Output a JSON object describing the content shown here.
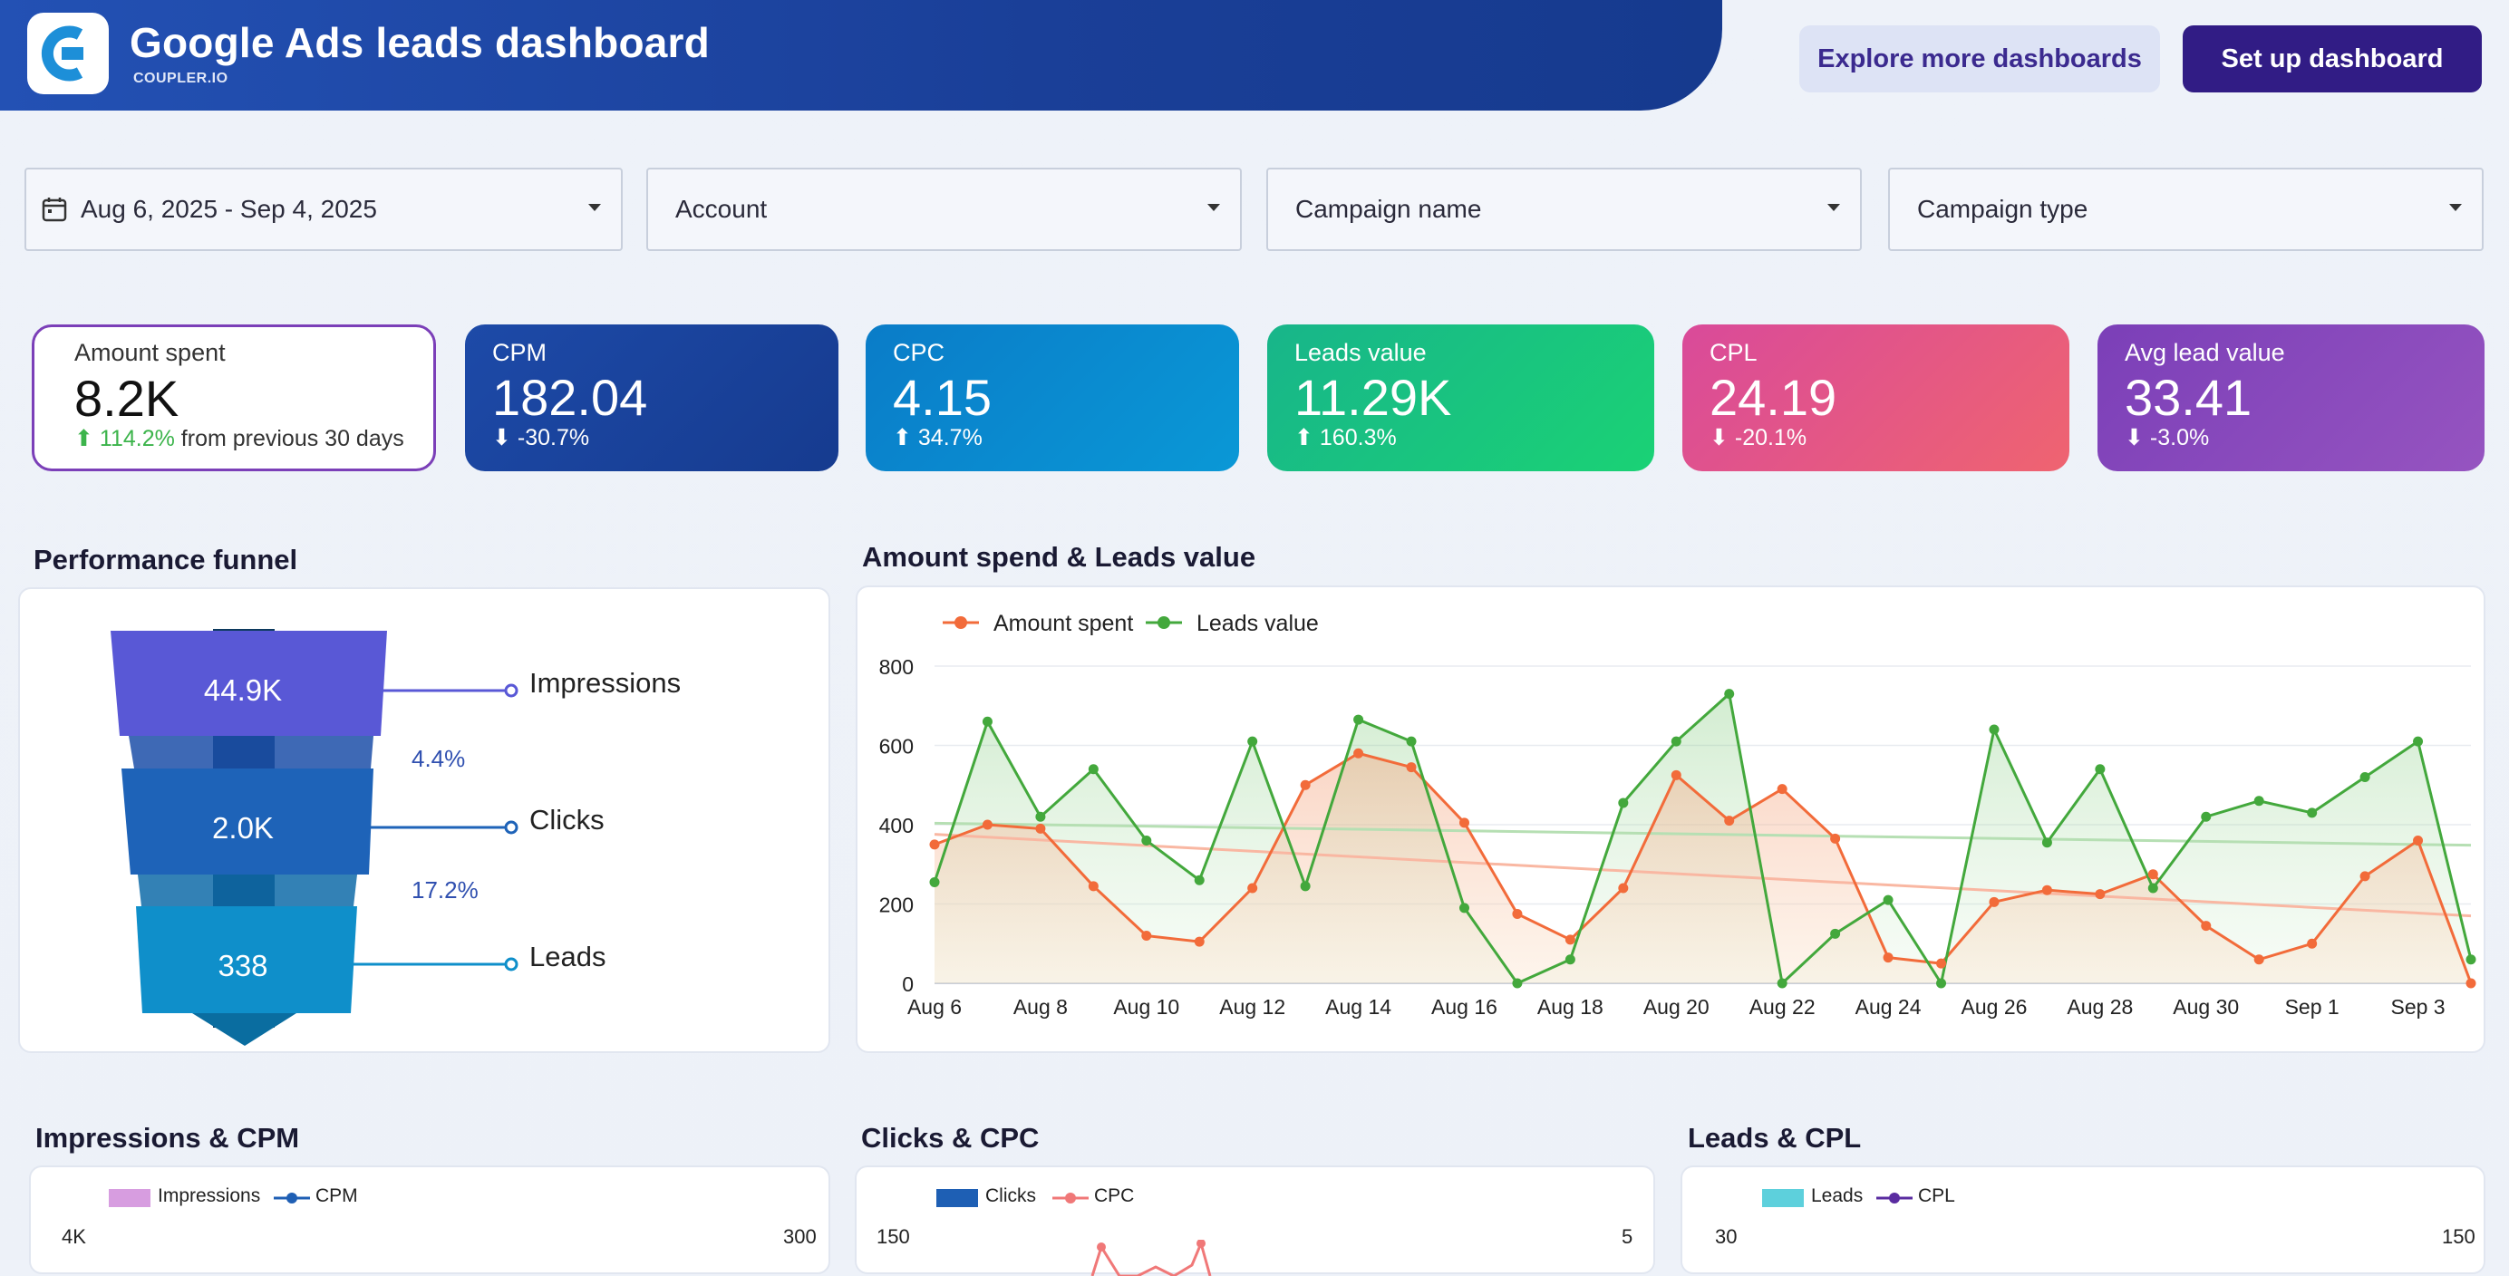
{
  "header": {
    "title": "Google Ads leads dashboard",
    "subtitle": "COUPLER.IO",
    "explore_button": "Explore more dashboards",
    "setup_button": "Set up dashboard",
    "brand_color": "#1a3f98"
  },
  "filters": {
    "date_range": "Aug 6, 2025 - Sep 4, 2025",
    "account": "Account",
    "campaign_name": "Campaign name",
    "campaign_type": "Campaign type"
  },
  "kpis": [
    {
      "label": "Amount spent",
      "value": "8.2K",
      "change": "114.2%",
      "change_suffix": "from previous 30 days",
      "direction": "up"
    },
    {
      "label": "CPM",
      "value": "182.04",
      "change": "-30.7%",
      "direction": "down"
    },
    {
      "label": "CPC",
      "value": "4.15",
      "change": "34.7%",
      "direction": "up"
    },
    {
      "label": "Leads value",
      "value": "11.29K",
      "change": "160.3%",
      "direction": "up"
    },
    {
      "label": "CPL",
      "value": "24.19",
      "change": "-20.1%",
      "direction": "down"
    },
    {
      "label": "Avg lead value",
      "value": "33.41",
      "change": "-3.0%",
      "direction": "down"
    }
  ],
  "funnel": {
    "title": "Performance funnel",
    "stages": [
      {
        "label": "Impressions",
        "value": "44.9K"
      },
      {
        "label": "Clicks",
        "value": "2.0K"
      },
      {
        "label": "Leads",
        "value": "338"
      }
    ],
    "rates": [
      "4.4%",
      "17.2%"
    ]
  },
  "chart_data": [
    {
      "type": "line",
      "title": "Amount spend & Leads value",
      "x": [
        "Aug 6",
        "Aug 7",
        "Aug 8",
        "Aug 9",
        "Aug 10",
        "Aug 11",
        "Aug 12",
        "Aug 13",
        "Aug 14",
        "Aug 15",
        "Aug 16",
        "Aug 17",
        "Aug 18",
        "Aug 19",
        "Aug 20",
        "Aug 21",
        "Aug 22",
        "Aug 23",
        "Aug 24",
        "Aug 25",
        "Aug 26",
        "Aug 27",
        "Aug 28",
        "Aug 29",
        "Aug 30",
        "Aug 31",
        "Sep 1",
        "Sep 2",
        "Sep 3",
        "Sep 4"
      ],
      "xticks": [
        "Aug 6",
        "Aug 8",
        "Aug 10",
        "Aug 12",
        "Aug 14",
        "Aug 16",
        "Aug 18",
        "Aug 20",
        "Aug 22",
        "Aug 24",
        "Aug 26",
        "Aug 28",
        "Aug 30",
        "Sep 1",
        "Sep 3"
      ],
      "ylim": [
        0,
        800
      ],
      "yticks": [
        0,
        200,
        400,
        600,
        800
      ],
      "series": [
        {
          "name": "Amount spent",
          "color": "#f26b3a",
          "values": [
            350,
            400,
            390,
            245,
            120,
            105,
            240,
            500,
            580,
            545,
            405,
            175,
            110,
            240,
            525,
            410,
            490,
            365,
            65,
            50,
            205,
            235,
            225,
            275,
            145,
            60,
            100,
            270,
            360,
            0
          ]
        },
        {
          "name": "Leads value",
          "color": "#43a83c",
          "values": [
            255,
            660,
            420,
            540,
            360,
            260,
            610,
            245,
            665,
            610,
            190,
            0,
            60,
            455,
            610,
            730,
            0,
            125,
            210,
            0,
            640,
            355,
            540,
            240,
            420,
            460,
            430,
            520,
            610,
            60
          ]
        }
      ]
    },
    {
      "type": "bar",
      "title": "Impressions & CPM",
      "legend": [
        "Impressions",
        "CPM"
      ],
      "yticks_left": [
        "4K"
      ],
      "yticks_right": [
        "300"
      ]
    },
    {
      "type": "bar",
      "title": "Clicks & CPC",
      "legend": [
        "Clicks",
        "CPC"
      ],
      "yticks_left": [
        "150"
      ],
      "yticks_right": [
        "5"
      ]
    },
    {
      "type": "bar",
      "title": "Leads & CPL",
      "legend": [
        "Leads",
        "CPL"
      ],
      "yticks_left": [
        "30"
      ],
      "yticks_right": [
        "150"
      ]
    }
  ]
}
